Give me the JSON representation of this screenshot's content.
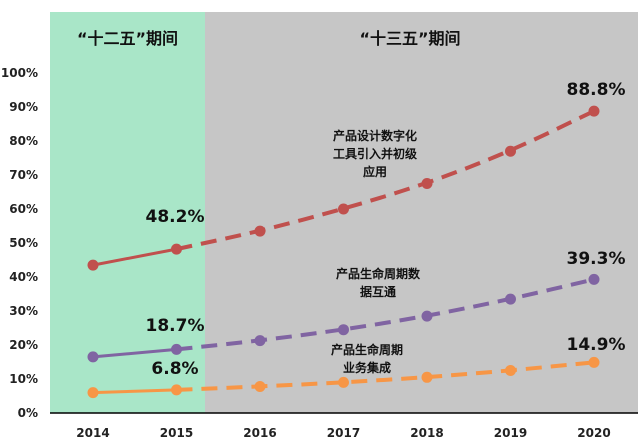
{
  "chart_data": {
    "type": "line",
    "x": [
      "2014",
      "2015",
      "2016",
      "2017",
      "2018",
      "2019",
      "2020"
    ],
    "ylim": [
      0,
      100
    ],
    "y_ticks": [
      "0%",
      "10%",
      "20%",
      "30%",
      "40%",
      "50%",
      "60%",
      "70%",
      "80%",
      "90%",
      "100%"
    ],
    "grid": false,
    "periods": [
      {
        "label": "“十二五”期间",
        "color": "#a9e6c8",
        "from": "2014",
        "to": "2015"
      },
      {
        "label": "“十三五”期间",
        "color": "#c6c6c6",
        "from": "2015",
        "to": "2020"
      }
    ],
    "series": [
      {
        "name": "产品设计数字化工具引入并初级应用",
        "color": "#c0504d",
        "values": [
          43.5,
          48.2,
          53.5,
          60,
          67.5,
          77,
          88.8
        ],
        "value_labels": {
          "2015": "48.2%",
          "2020": "88.8%"
        },
        "annotation_lines": [
          "产品设计数字化",
          "工具引入并初级",
          "应用"
        ]
      },
      {
        "name": "产品生命周期数据互通",
        "color": "#8064a2",
        "values": [
          16.5,
          18.7,
          21.3,
          24.5,
          28.5,
          33.5,
          39.3
        ],
        "value_labels": {
          "2015": "18.7%",
          "2020": "39.3%"
        },
        "annotation_lines": [
          "产品生命周期数",
          "据互通"
        ]
      },
      {
        "name": "产品生命周期业务集成",
        "color": "#f79646",
        "values": [
          6,
          6.8,
          7.8,
          9,
          10.5,
          12.5,
          14.9
        ],
        "value_labels": {
          "2015": "6.8%",
          "2020": "14.9%"
        },
        "annotation_lines": [
          "产品生命周期",
          "业务集成"
        ]
      }
    ]
  }
}
